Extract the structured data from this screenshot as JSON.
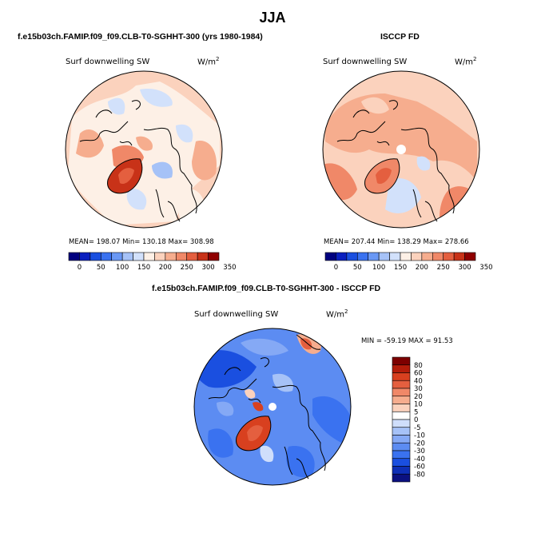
{
  "main_title": "JJA",
  "panels": {
    "model": {
      "title": "f.e15b03ch.FAMIP.f09_f09.CLB-T0-SGHHT-300 (yrs 1980-1984)",
      "variable": "Surf downwelling SW",
      "units": "W/m",
      "units_exp": "2",
      "stats": "MEAN= 198.07  Min= 130.18  Max= 308.98"
    },
    "obs": {
      "title": "ISCCP FD",
      "variable": "Surf downwelling SW",
      "units": "W/m",
      "units_exp": "2",
      "stats": "MEAN= 207.44  Min= 138.29  Max= 278.66"
    },
    "diff": {
      "title": "f.e15b03ch.FAMIP.f09_f09.CLB-T0-SGHHT-300 - ISCCP FD",
      "variable": "Surf downwelling SW",
      "units": "W/m",
      "units_exp": "2",
      "stats": "MIN = -59.19  MAX =  91.53"
    }
  },
  "colors": {
    "abs_scale": [
      "#00007f",
      "#0a1fbf",
      "#1a4fe0",
      "#3a72f0",
      "#6a98f5",
      "#a6c2f7",
      "#d2e1fb",
      "#fdf0e6",
      "#fbd2bd",
      "#f6ad8e",
      "#f08868",
      "#e45f3f",
      "#c83218",
      "#8f0000"
    ],
    "diff_scale": [
      "#0b1180",
      "#0e2fb6",
      "#1a4fe0",
      "#3a72f0",
      "#5c8cf2",
      "#85a9f5",
      "#a6c2f7",
      "#cfdefb",
      "#ffffff",
      "#fbd2bd",
      "#f6ad8e",
      "#f08868",
      "#e45f3f",
      "#d8401f",
      "#b31c0a",
      "#7d0000"
    ]
  },
  "chart_data": [
    {
      "type": "heatmap",
      "projection": "polar stereographic (north pole)",
      "title": "f.e15b03ch.FAMIP.f09_f09.CLB-T0-SGHHT-300 (yrs 1980-1984)",
      "variable": "Surf downwelling SW",
      "units": "W/m2",
      "mean": 198.07,
      "min": 130.18,
      "max": 308.98,
      "colorbar_levels": [
        0,
        50,
        100,
        150,
        200,
        250,
        300,
        350
      ]
    },
    {
      "type": "heatmap",
      "projection": "polar stereographic (north pole)",
      "title": "ISCCP FD",
      "variable": "Surf downwelling SW",
      "units": "W/m2",
      "mean": 207.44,
      "min": 138.29,
      "max": 278.66,
      "colorbar_levels": [
        0,
        50,
        100,
        150,
        200,
        250,
        300,
        350
      ]
    },
    {
      "type": "heatmap",
      "projection": "polar stereographic (north pole)",
      "title": "f.e15b03ch.FAMIP.f09_f09.CLB-T0-SGHHT-300 - ISCCP FD",
      "variable": "Surf downwelling SW",
      "units": "W/m2",
      "min": -59.19,
      "max": 91.53,
      "colorbar_levels": [
        80,
        60,
        40,
        30,
        20,
        10,
        5,
        0,
        -5,
        -10,
        -20,
        -30,
        -40,
        -60,
        -80
      ]
    }
  ]
}
